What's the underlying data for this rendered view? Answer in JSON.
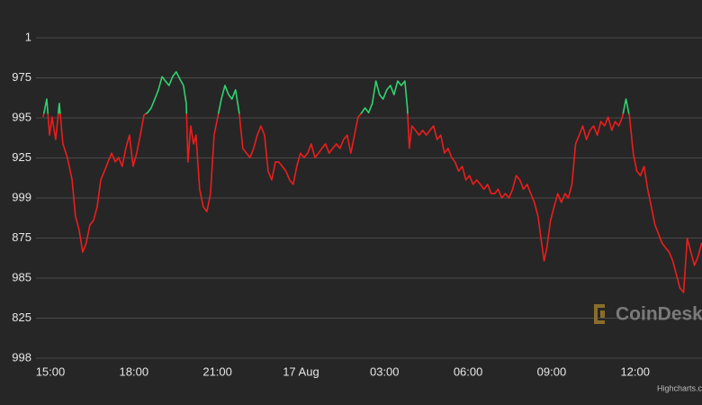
{
  "chart_data": {
    "type": "line",
    "ylim": [
      0,
      8
    ],
    "yticks": [
      {
        "value": 8,
        "label": "1"
      },
      {
        "value": 7,
        "label": "975"
      },
      {
        "value": 6,
        "label": "995"
      },
      {
        "value": 5,
        "label": "925"
      },
      {
        "value": 4,
        "label": "999"
      },
      {
        "value": 3,
        "label": "875"
      },
      {
        "value": 2,
        "label": "985"
      },
      {
        "value": 1,
        "label": "825"
      },
      {
        "value": 0,
        "label": "998"
      }
    ],
    "xlim": [
      -0.3,
      23.4
    ],
    "xticks": [
      {
        "value": 0,
        "label": "15:00"
      },
      {
        "value": 3,
        "label": "18:00"
      },
      {
        "value": 6,
        "label": "21:00"
      },
      {
        "value": 9,
        "label": "17 Aug"
      },
      {
        "value": 12,
        "label": "03:00"
      },
      {
        "value": 15,
        "label": "06:00"
      },
      {
        "value": 18,
        "label": "09:00"
      },
      {
        "value": 21,
        "label": "12:00"
      }
    ],
    "grid": true,
    "threshold": 6.1,
    "color_above": "#2fd36e",
    "color_below": "#ee1c1c",
    "watermark": "CoinDesk",
    "credits": "Highcharts.c",
    "series": [
      {
        "x": [
          -0.26,
          -0.13,
          -0.03,
          0.06,
          0.19,
          0.32,
          0.45,
          0.61,
          0.78,
          0.9,
          1.03,
          1.16,
          1.29,
          1.42,
          1.55,
          1.68,
          1.81,
          1.94,
          2.07,
          2.2,
          2.33,
          2.45,
          2.58,
          2.71,
          2.84,
          2.97,
          3.1,
          3.23,
          3.36,
          3.49,
          3.62,
          3.75,
          3.88,
          4.01,
          4.13,
          4.26,
          4.39,
          4.52,
          4.65,
          4.78,
          4.88,
          4.94,
          5.04,
          5.14,
          5.23,
          5.36,
          5.49,
          5.62,
          5.75,
          5.88,
          6.01,
          6.14,
          6.27,
          6.4,
          6.52,
          6.65,
          6.78,
          6.91,
          7.04,
          7.17,
          7.3,
          7.43,
          7.56,
          7.69,
          7.82,
          7.95,
          8.08,
          8.2,
          8.33,
          8.46,
          8.59,
          8.72,
          8.85,
          8.98,
          9.11,
          9.24,
          9.37,
          9.5,
          9.63,
          9.75,
          9.88,
          10.01,
          10.14,
          10.27,
          10.4,
          10.53,
          10.66,
          10.79,
          10.92,
          11.05,
          11.18,
          11.3,
          11.43,
          11.56,
          11.69,
          11.82,
          11.95,
          12.08,
          12.21,
          12.34,
          12.47,
          12.6,
          12.73,
          12.82,
          12.89,
          12.98,
          13.11,
          13.24,
          13.37,
          13.5,
          13.63,
          13.76,
          13.89,
          14.02,
          14.15,
          14.28,
          14.41,
          14.53,
          14.66,
          14.79,
          14.92,
          15.05,
          15.18,
          15.31,
          15.44,
          15.57,
          15.7,
          15.83,
          15.96,
          16.08,
          16.21,
          16.34,
          16.47,
          16.6,
          16.73,
          16.86,
          16.99,
          17.12,
          17.25,
          17.38,
          17.51,
          17.64,
          17.73,
          17.83,
          17.96,
          18.09,
          18.22,
          18.35,
          18.48,
          18.6,
          18.73,
          18.86,
          18.99,
          19.12,
          19.25,
          19.38,
          19.51,
          19.64,
          19.77,
          19.9,
          20.03,
          20.16,
          20.28,
          20.41,
          20.54,
          20.67,
          20.8,
          20.93,
          21.06,
          21.19,
          21.32,
          21.45,
          21.58,
          21.71,
          21.84,
          21.96,
          22.09,
          22.22,
          22.35,
          22.48,
          22.61,
          22.74,
          22.87,
          23.0,
          23.13,
          23.26,
          23.39
        ],
        "values": [
          6.02,
          6.47,
          5.57,
          6.02,
          5.46,
          6.36,
          5.35,
          5.01,
          4.45,
          3.55,
          3.21,
          2.65,
          2.88,
          3.33,
          3.44,
          3.78,
          4.45,
          4.67,
          4.9,
          5.12,
          4.9,
          5.01,
          4.79,
          5.24,
          5.57,
          4.79,
          5.12,
          5.57,
          6.07,
          6.13,
          6.25,
          6.47,
          6.7,
          7.03,
          6.92,
          6.81,
          7.03,
          7.15,
          6.97,
          6.81,
          6.36,
          4.9,
          5.8,
          5.35,
          5.57,
          4.22,
          3.78,
          3.66,
          4.11,
          5.57,
          6.02,
          6.47,
          6.81,
          6.58,
          6.47,
          6.7,
          6.13,
          5.24,
          5.12,
          5.01,
          5.24,
          5.57,
          5.8,
          5.57,
          4.67,
          4.45,
          4.9,
          4.9,
          4.79,
          4.67,
          4.45,
          4.34,
          4.79,
          5.12,
          5.01,
          5.12,
          5.35,
          5.01,
          5.12,
          5.24,
          5.35,
          5.12,
          5.24,
          5.35,
          5.24,
          5.46,
          5.57,
          5.12,
          5.57,
          6.02,
          6.13,
          6.25,
          6.13,
          6.36,
          6.92,
          6.58,
          6.47,
          6.7,
          6.81,
          6.58,
          6.92,
          6.81,
          6.92,
          6.25,
          5.24,
          5.8,
          5.69,
          5.57,
          5.69,
          5.57,
          5.69,
          5.8,
          5.46,
          5.57,
          5.12,
          5.24,
          5.01,
          4.9,
          4.67,
          4.79,
          4.45,
          4.56,
          4.34,
          4.45,
          4.34,
          4.22,
          4.34,
          4.11,
          4.11,
          4.22,
          4.0,
          4.11,
          4.0,
          4.22,
          4.56,
          4.45,
          4.22,
          4.34,
          4.11,
          3.89,
          3.55,
          2.88,
          2.43,
          2.76,
          3.44,
          3.78,
          4.11,
          3.89,
          4.11,
          4.0,
          4.34,
          5.35,
          5.57,
          5.8,
          5.46,
          5.69,
          5.8,
          5.57,
          5.91,
          5.8,
          6.02,
          5.69,
          5.91,
          5.8,
          6.02,
          6.47,
          6.02,
          5.12,
          4.67,
          4.56,
          4.79,
          4.22,
          3.78,
          3.33,
          3.1,
          2.88,
          2.76,
          2.65,
          2.43,
          2.09,
          1.75,
          1.64,
          2.99,
          2.65,
          2.32,
          2.54,
          2.88
        ]
      }
    ]
  }
}
